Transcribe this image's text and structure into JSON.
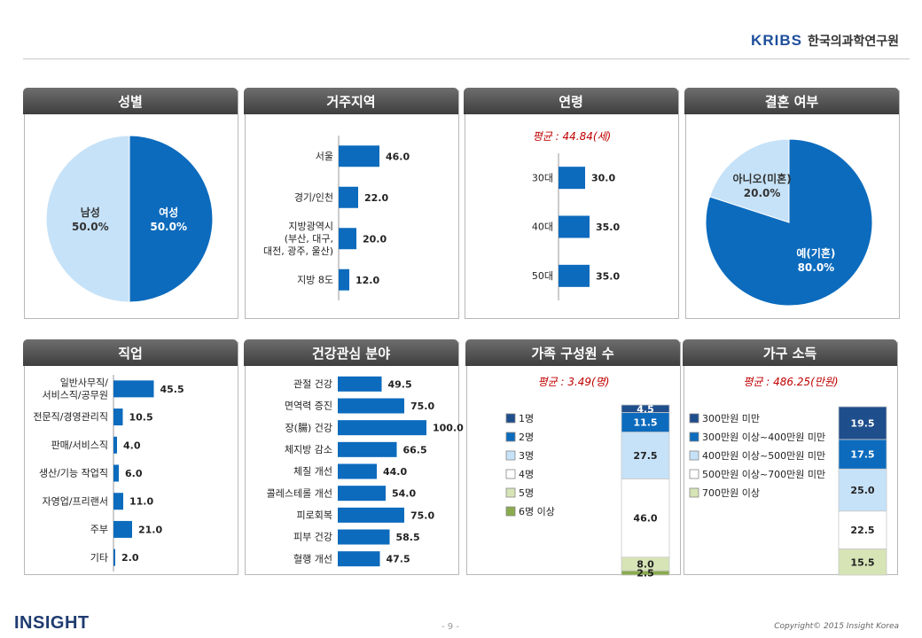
{
  "header": {
    "logo_mark": "KRIBS",
    "org_name": "한국의과학연구원"
  },
  "footer": {
    "logo": "INSIGHT",
    "page": "- 9 -",
    "copyright": "Copyright© 2015 Insight Korea"
  },
  "colors": {
    "dark_blue": "#1f4e8c",
    "blue": "#0c6bbd",
    "light_blue": "#c6e2f8",
    "white": "#ffffff",
    "pale_green": "#d6e4b6",
    "green": "#8aab4e"
  },
  "panels": [
    {
      "title": "성별"
    },
    {
      "title": "거주지역"
    },
    {
      "title": "연령"
    },
    {
      "title": "결혼 여부"
    },
    {
      "title": "직업"
    },
    {
      "title": "건강관심 분야"
    },
    {
      "title": "가족 구성원 수"
    },
    {
      "title": "가구 소득"
    }
  ],
  "chart_data": [
    {
      "type": "pie",
      "title": "성별",
      "slices": [
        {
          "label": "여성",
          "value": 50.0,
          "display": "50.0%",
          "color": "#0c6bbd"
        },
        {
          "label": "남성",
          "value": 50.0,
          "display": "50.0%",
          "color": "#c6e2f8"
        }
      ]
    },
    {
      "type": "bar",
      "orientation": "horizontal",
      "title": "거주지역",
      "categories": [
        "서울",
        "경기/인천",
        "지방광역시\n(부산, 대구,\n대전, 광주, 울산)",
        "지방 8도"
      ],
      "values": [
        46.0,
        22.0,
        20.0,
        12.0
      ]
    },
    {
      "type": "bar",
      "orientation": "horizontal",
      "title": "연령",
      "subtitle": "평균 : 44.84(세)",
      "categories": [
        "30대",
        "40대",
        "50대"
      ],
      "values": [
        30.0,
        35.0,
        35.0
      ]
    },
    {
      "type": "pie",
      "title": "결혼 여부",
      "slices": [
        {
          "label": "예(기혼)",
          "value": 80.0,
          "display": "80.0%",
          "color": "#0c6bbd"
        },
        {
          "label": "아니오(미혼)",
          "value": 20.0,
          "display": "20.0%",
          "color": "#c6e2f8"
        }
      ]
    },
    {
      "type": "bar",
      "orientation": "horizontal",
      "title": "직업",
      "categories": [
        "일반사무직/\n서비스직/공무원",
        "전문직/경영관리직",
        "판매/서비스직",
        "생산/기능 작업직",
        "자영업/프리랜서",
        "주부",
        "기타"
      ],
      "values": [
        45.5,
        10.5,
        4.0,
        6.0,
        11.0,
        21.0,
        2.0
      ]
    },
    {
      "type": "bar",
      "orientation": "horizontal",
      "title": "건강관심 분야",
      "categories": [
        "관절 건강",
        "면역력 증진",
        "장(腸) 건강",
        "체지방 감소",
        "체질 개선",
        "콜레스테롤 개선",
        "피로회복",
        "피부 건강",
        "혈행 개선"
      ],
      "values": [
        49.5,
        75.0,
        100.0,
        66.5,
        44.0,
        54.0,
        75.0,
        58.5,
        47.5
      ]
    },
    {
      "type": "bar",
      "stacked": true,
      "title": "가족 구성원 수",
      "subtitle": "평균 : 3.49(명)",
      "series": [
        {
          "name": "1명",
          "value": 4.5,
          "color": "#1f4e8c"
        },
        {
          "name": "2명",
          "value": 11.5,
          "color": "#0c6bbd"
        },
        {
          "name": "3명",
          "value": 27.5,
          "color": "#c6e2f8"
        },
        {
          "name": "4명",
          "value": 46.0,
          "color": "#ffffff"
        },
        {
          "name": "5명",
          "value": 8.0,
          "color": "#d6e4b6"
        },
        {
          "name": "6명 이상",
          "value": 2.5,
          "color": "#8aab4e"
        }
      ]
    },
    {
      "type": "bar",
      "stacked": true,
      "title": "가구 소득",
      "subtitle": "평균 : 486.25(만원)",
      "series": [
        {
          "name": "300만원 미만",
          "value": 19.5,
          "color": "#1f4e8c"
        },
        {
          "name": "300만원 이상~400만원 미만",
          "value": 17.5,
          "color": "#0c6bbd"
        },
        {
          "name": "400만원 이상~500만원 미만",
          "value": 25.0,
          "color": "#c6e2f8"
        },
        {
          "name": "500만원 이상~700만원 미만",
          "value": 22.5,
          "color": "#ffffff"
        },
        {
          "name": "700만원 이상",
          "value": 15.5,
          "color": "#d6e4b6"
        }
      ]
    }
  ]
}
